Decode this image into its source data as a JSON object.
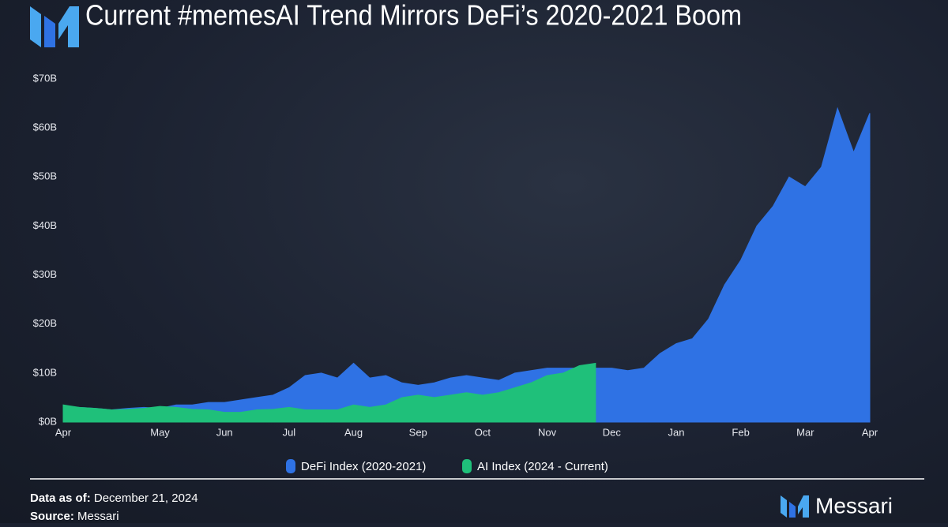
{
  "chart_data": {
    "type": "area",
    "title": "Current #memesAI Trend Mirrors DeFi’s 2020-2021 Boom",
    "xlim": [
      0,
      12.5
    ],
    "xticks": [
      {
        "value": 0,
        "label": "Apr"
      },
      {
        "value": 1.5,
        "label": "May"
      },
      {
        "value": 2.5,
        "label": "Jun"
      },
      {
        "value": 3.5,
        "label": "Jul"
      },
      {
        "value": 4.5,
        "label": "Aug"
      },
      {
        "value": 5.5,
        "label": "Sep"
      },
      {
        "value": 6.5,
        "label": "Oct"
      },
      {
        "value": 7.5,
        "label": "Nov"
      },
      {
        "value": 8.5,
        "label": "Dec"
      },
      {
        "value": 9.5,
        "label": "Jan"
      },
      {
        "value": 10.5,
        "label": "Feb"
      },
      {
        "value": 11.5,
        "label": "Mar"
      },
      {
        "value": 12.5,
        "label": "Apr"
      }
    ],
    "ylim": [
      0,
      70
    ],
    "yticks": [
      {
        "value": 0,
        "label": "$0B"
      },
      {
        "value": 10,
        "label": "$10B"
      },
      {
        "value": 20,
        "label": "$20B"
      },
      {
        "value": 30,
        "label": "$30B"
      },
      {
        "value": 40,
        "label": "$40B"
      },
      {
        "value": 50,
        "label": "$50B"
      },
      {
        "value": 60,
        "label": "$60B"
      },
      {
        "value": 70,
        "label": "$70B"
      }
    ],
    "series": [
      {
        "name": "DeFi Index (2020-2021)",
        "color": "#2f72e4",
        "x": [
          0,
          0.25,
          0.5,
          0.75,
          1,
          1.25,
          1.5,
          1.75,
          2,
          2.25,
          2.5,
          2.75,
          3,
          3.25,
          3.5,
          3.75,
          4,
          4.25,
          4.5,
          4.75,
          5,
          5.25,
          5.5,
          5.75,
          6,
          6.25,
          6.5,
          6.75,
          7,
          7.25,
          7.5,
          7.75,
          8,
          8.25,
          8.5,
          8.75,
          9,
          9.25,
          9.5,
          9.75,
          10,
          10.25,
          10.5,
          10.75,
          11,
          11.25,
          11.5,
          11.75,
          12,
          12.25,
          12.5
        ],
        "values": [
          3,
          3,
          2.8,
          2.5,
          2.8,
          3,
          2.8,
          3.5,
          3.5,
          4,
          4,
          4.5,
          5,
          5.5,
          7,
          9.5,
          10,
          9,
          12,
          9,
          9.5,
          8,
          7.5,
          8,
          9,
          9.5,
          9,
          8.5,
          10,
          10.5,
          11,
          11,
          11,
          11,
          11,
          10.5,
          11,
          14,
          16,
          17,
          21,
          28,
          33,
          40,
          44,
          50,
          48,
          52,
          64,
          55,
          63
        ]
      },
      {
        "name": "AI Index (2024 - Current)",
        "color": "#1fc07a",
        "x": [
          0,
          0.25,
          0.5,
          0.75,
          1,
          1.25,
          1.5,
          1.75,
          2,
          2.25,
          2.5,
          2.75,
          3,
          3.25,
          3.5,
          3.75,
          4,
          4.25,
          4.5,
          4.75,
          5,
          5.25,
          5.5,
          5.75,
          6,
          6.25,
          6.5,
          6.75,
          7,
          7.25,
          7.5,
          7.75,
          8,
          8.25
        ],
        "values": [
          3.5,
          3,
          2.8,
          2.5,
          2.6,
          2.8,
          3.2,
          3,
          2.6,
          2.5,
          2,
          2,
          2.5,
          2.6,
          3,
          2.5,
          2.5,
          2.5,
          3.5,
          3,
          3.5,
          5,
          5.5,
          5,
          5.5,
          6,
          5.5,
          6,
          7,
          8,
          9.5,
          10,
          11.5,
          12
        ]
      }
    ],
    "footer": {
      "date_label": "Data as of:",
      "date": "December 21, 2024",
      "source_label": "Source:",
      "source": "Messari"
    },
    "brand": "Messari"
  }
}
